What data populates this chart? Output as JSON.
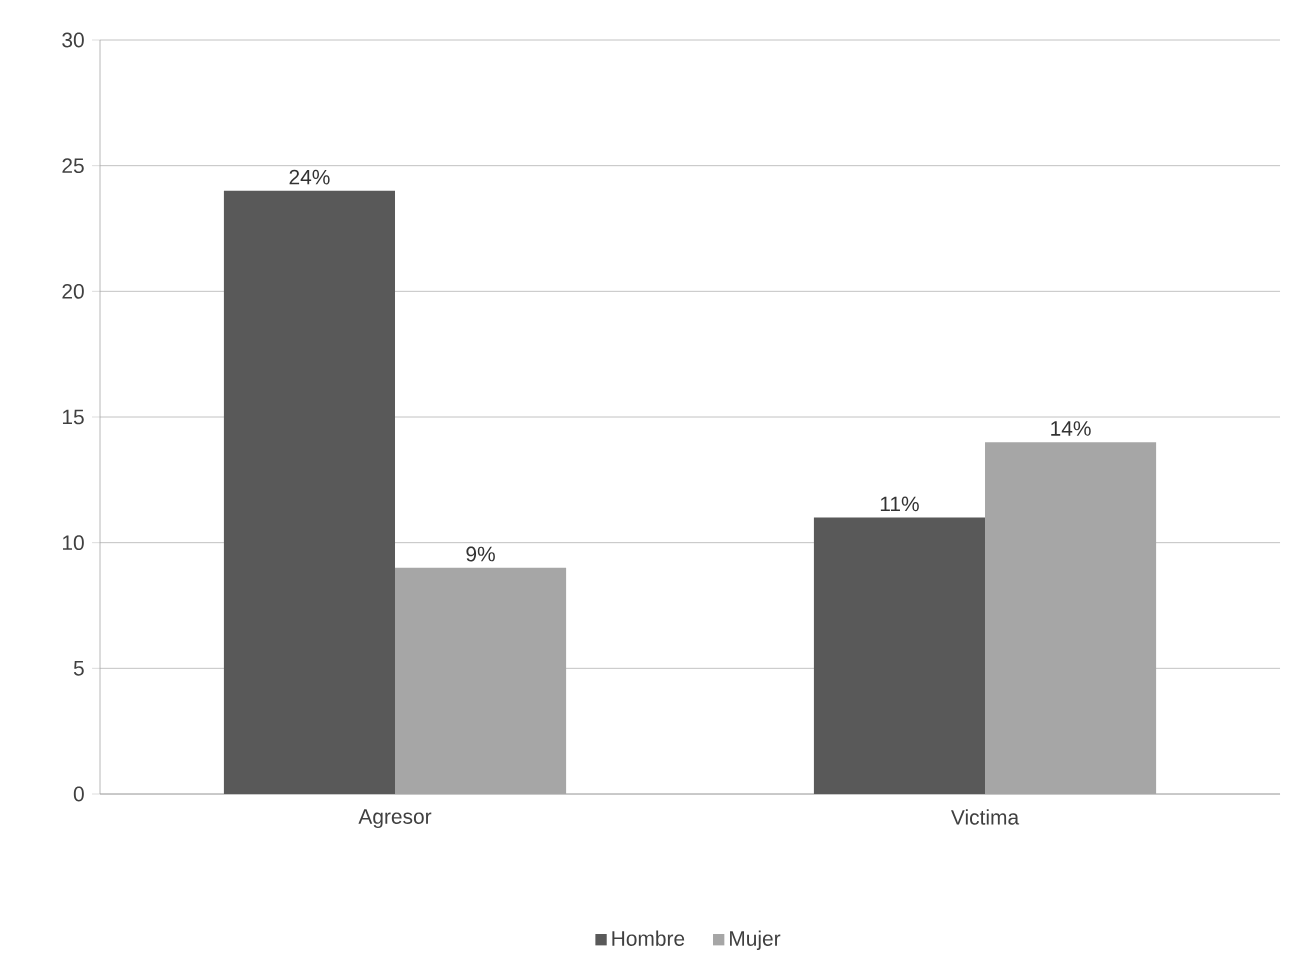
{
  "chart_data": {
    "type": "bar",
    "categories": [
      "Agresor",
      "Victima"
    ],
    "series": [
      {
        "name": "Hombre",
        "color": "#595959",
        "values": [
          24,
          11
        ],
        "value_labels": [
          "24%",
          "11%"
        ]
      },
      {
        "name": "Mujer",
        "color": "#a6a6a6",
        "values": [
          9,
          14
        ],
        "value_labels": [
          "9%",
          "14%"
        ]
      }
    ],
    "ylim": [
      0,
      30
    ],
    "yticks": [
      0,
      5,
      10,
      15,
      20,
      25,
      30
    ],
    "grid": "y",
    "legend": "bottom"
  }
}
